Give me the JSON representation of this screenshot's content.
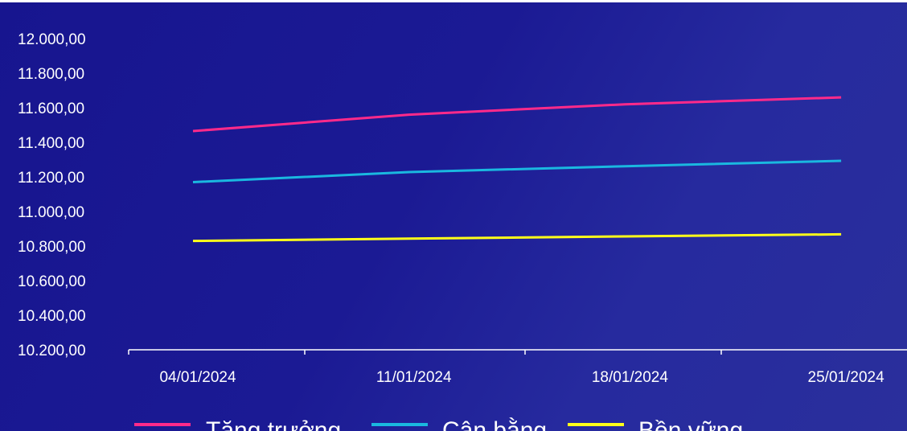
{
  "chart_data": {
    "type": "line",
    "x": [
      "04/01/2024",
      "11/01/2024",
      "18/01/2024",
      "25/01/2024"
    ],
    "y_ticks": [
      "12.000,00",
      "11.800,00",
      "11.600,00",
      "11.400,00",
      "11.200,00",
      "11.000,00",
      "10.800,00",
      "10.600,00",
      "10.400,00",
      "10.200,00"
    ],
    "ylim": [
      10200,
      12000
    ],
    "grid": false,
    "legend_position": "bottom",
    "series": [
      {
        "name": "Tăng trưởng",
        "color": "#ff2a8a",
        "values": [
          11465,
          11560,
          11620,
          11660
        ]
      },
      {
        "name": "Cân bằng",
        "color": "#1ab8e0",
        "values": [
          11170,
          11228,
          11262,
          11293
        ]
      },
      {
        "name": "Bền vững",
        "color": "#ffff1a",
        "values": [
          10830,
          10843,
          10856,
          10868
        ]
      }
    ]
  }
}
